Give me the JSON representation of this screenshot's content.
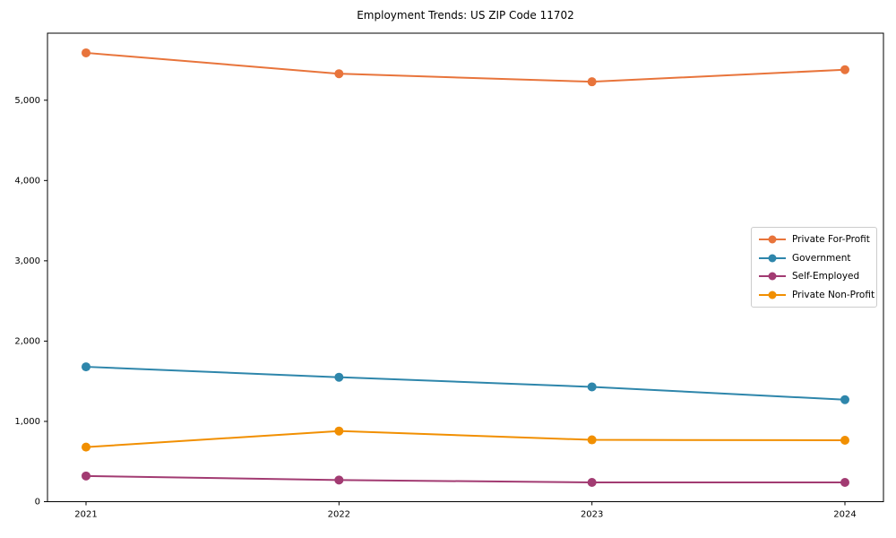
{
  "chart_data": {
    "type": "line",
    "title": "Employment Trends: US ZIP Code 11702",
    "categories": [
      "2021",
      "2022",
      "2023",
      "2024"
    ],
    "series": [
      {
        "name": "Private For-Profit",
        "color": "#E8743B",
        "values": [
          5590,
          5330,
          5230,
          5380
        ]
      },
      {
        "name": "Government",
        "color": "#2E86AB",
        "values": [
          1680,
          1550,
          1430,
          1270
        ]
      },
      {
        "name": "Self-Employed",
        "color": "#A23B72",
        "values": [
          320,
          270,
          240,
          240
        ]
      },
      {
        "name": "Private Non-Profit",
        "color": "#F18F01",
        "values": [
          680,
          880,
          770,
          765
        ]
      }
    ],
    "xlabel": "",
    "ylabel": "",
    "ylim": [
      0,
      5835
    ],
    "yticks": [
      0,
      1000,
      2000,
      3000,
      4000,
      5000
    ],
    "ytick_labels": [
      "0",
      "1,000",
      "2,000",
      "3,000",
      "4,000",
      "5,000"
    ],
    "grid": false,
    "legend_position": "center-right",
    "marker": "circle",
    "line_width": 2
  }
}
